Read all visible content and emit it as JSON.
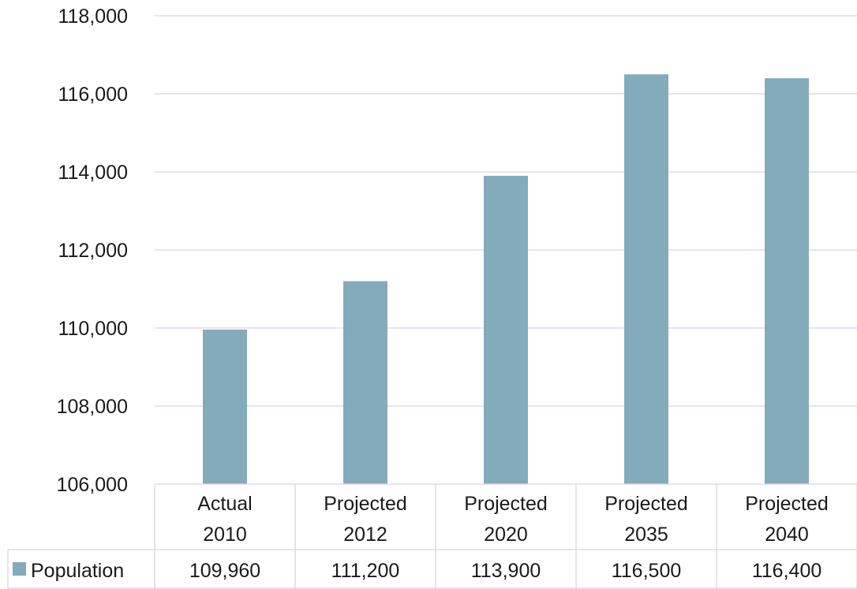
{
  "chart_data": {
    "type": "bar",
    "categories": [
      [
        "Actual",
        "2010"
      ],
      [
        "Projected",
        "2012"
      ],
      [
        "Projected",
        "2020"
      ],
      [
        "Projected",
        "2035"
      ],
      [
        "Projected",
        "2040"
      ]
    ],
    "series": [
      {
        "name": "Population",
        "values": [
          109960,
          111200,
          113900,
          116500,
          116400
        ],
        "labels": [
          "109,960",
          "111,200",
          "113,900",
          "116,500",
          "116,400"
        ],
        "color": "#84abbb"
      }
    ],
    "yticks": [
      "106,000",
      "108,000",
      "110,000",
      "112,000",
      "114,000",
      "116,000",
      "118,000"
    ],
    "ylim": [
      106000,
      118000
    ],
    "grid": true,
    "data_table": true,
    "legend": "in-data-table",
    "gridColor": "#e0d8ec"
  }
}
